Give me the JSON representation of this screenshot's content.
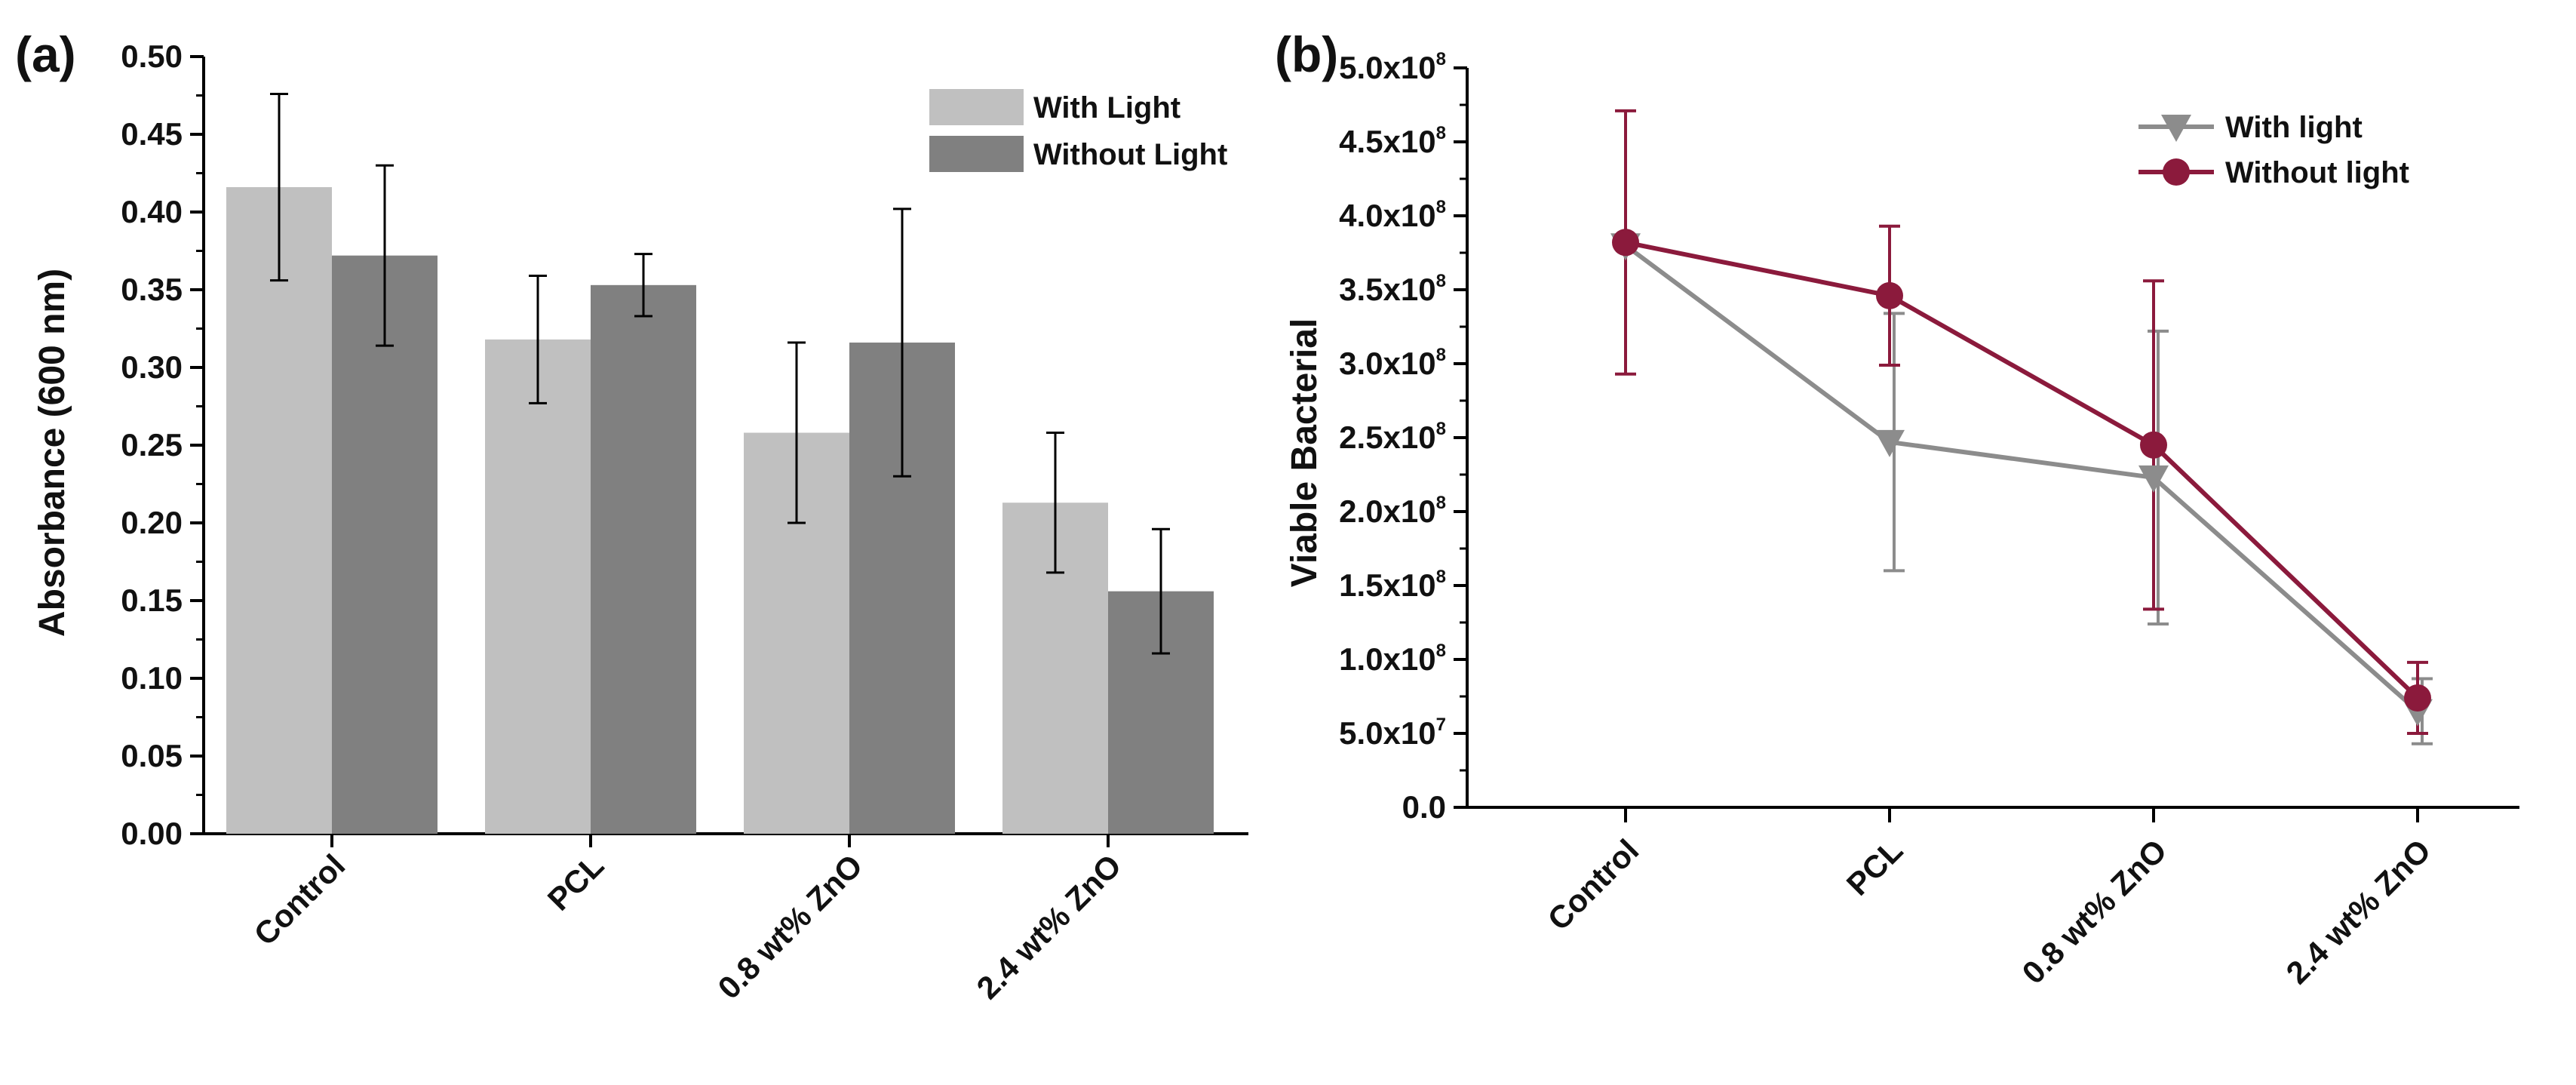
{
  "chart_data": [
    {
      "panel_label": "(a)",
      "type": "bar",
      "categories": [
        "Control",
        "PCL",
        "0.8 wt% ZnO",
        "2.4 wt% ZnO"
      ],
      "series": [
        {
          "name": "With Light",
          "color": "#c0c0c0",
          "values": [
            0.416,
            0.318,
            0.258,
            0.213
          ],
          "errors": [
            0.06,
            0.041,
            0.058,
            0.045
          ]
        },
        {
          "name": "Without Light",
          "color": "#808080",
          "values": [
            0.372,
            0.353,
            0.316,
            0.156
          ],
          "errors": [
            0.058,
            0.02,
            0.086,
            0.04
          ]
        }
      ],
      "ylabel": "Absorbance (600 nm)",
      "ylim": [
        0,
        0.5
      ],
      "yticks": [
        "0.00",
        "0.05",
        "0.10",
        "0.15",
        "0.20",
        "0.25",
        "0.30",
        "0.35",
        "0.40",
        "0.45",
        "0.50"
      ],
      "legend": "top-right",
      "grid": false
    },
    {
      "panel_label": "(b)",
      "type": "line",
      "categories": [
        "Control",
        "PCL",
        "0.8 wt% ZnO",
        "2.4 wt% ZnO"
      ],
      "series": [
        {
          "name": "With light",
          "color": "#8c8c8c",
          "marker": "triangle-down",
          "values": [
            380000000.0,
            247000000.0,
            223000000.0,
            65000000.0
          ],
          "errors": [
            0.0,
            87000000.0,
            99000000.0,
            22000000.0
          ]
        },
        {
          "name": "Without light",
          "color": "#8b1a3c",
          "marker": "circle",
          "values": [
            382000000.0,
            346000000.0,
            245000000.0,
            74000000.0
          ],
          "errors": [
            89000000.0,
            47000000.0,
            111000000.0,
            24000000.0
          ]
        }
      ],
      "ylabel": "Viable Bacterial",
      "ylim": [
        0,
        500000000.0
      ],
      "yticks": [
        {
          "base": "0.0",
          "exp": ""
        },
        {
          "base": "5.0x10",
          "exp": "7"
        },
        {
          "base": "1.0x10",
          "exp": "8"
        },
        {
          "base": "1.5x10",
          "exp": "8"
        },
        {
          "base": "2.0x10",
          "exp": "8"
        },
        {
          "base": "2.5x10",
          "exp": "8"
        },
        {
          "base": "3.0x10",
          "exp": "8"
        },
        {
          "base": "3.5x10",
          "exp": "8"
        },
        {
          "base": "4.0x10",
          "exp": "8"
        },
        {
          "base": "4.5x10",
          "exp": "8"
        },
        {
          "base": "5.0x10",
          "exp": "8"
        }
      ],
      "legend": "top-right",
      "grid": false
    }
  ]
}
